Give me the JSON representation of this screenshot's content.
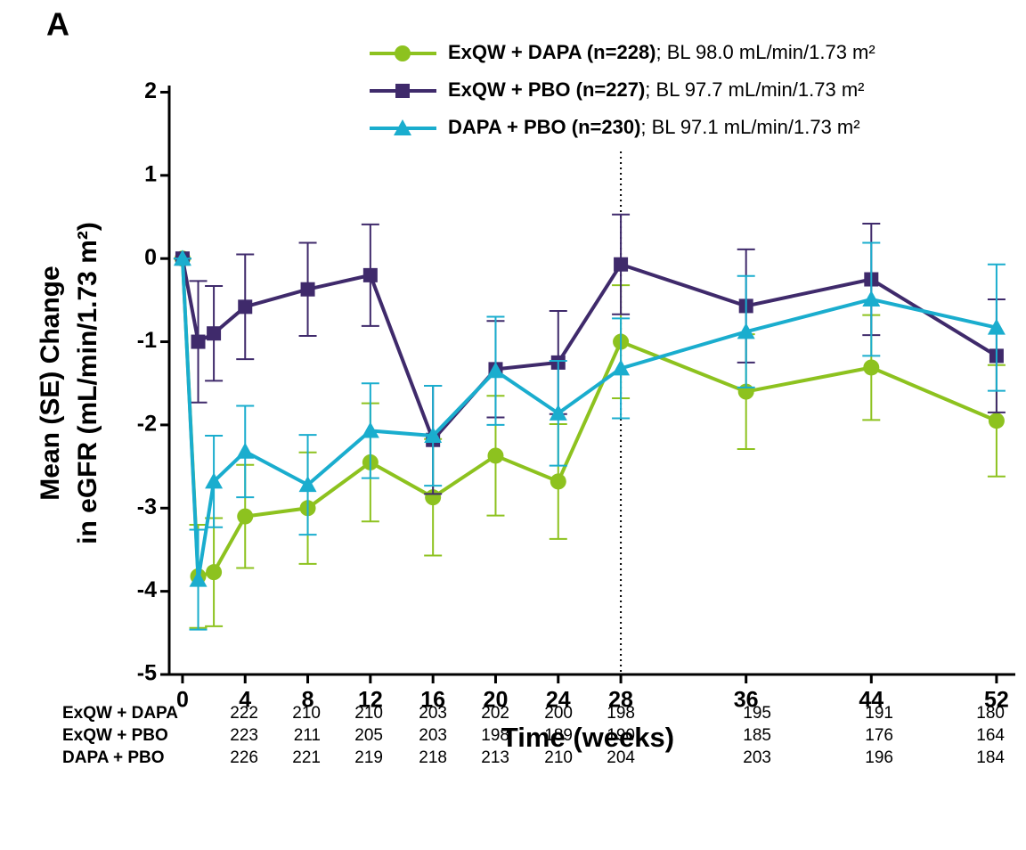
{
  "chart_data": {
    "type": "line",
    "panel_label": "A",
    "xlabel": "Time (weeks)",
    "ylabel": [
      "Mean (SE) Change",
      "in eGFR (mL/min/1.73 m²)"
    ],
    "x": [
      0,
      1,
      2,
      4,
      8,
      12,
      16,
      20,
      24,
      28,
      36,
      44,
      52
    ],
    "xlim": [
      -0.85,
      53.2
    ],
    "ylim": [
      -5,
      2.08
    ],
    "xticks": [
      0,
      4,
      8,
      12,
      16,
      20,
      24,
      28,
      36,
      44,
      52
    ],
    "yticks": [
      -5,
      -4,
      -3,
      -2,
      -1,
      0,
      1,
      2
    ],
    "reference_line_x": 28,
    "series": [
      {
        "name": "ExQW + DAPA (n=228)",
        "baseline": "; BL 98.0 mL/min/1.73 m²",
        "color": "#8dc21f",
        "marker": "circle",
        "values": [
          0,
          -3.82,
          -3.77,
          -3.1,
          -3.0,
          -2.45,
          -2.87,
          -2.37,
          -2.68,
          -1.0,
          -1.6,
          -1.31,
          -1.95
        ],
        "errors": [
          0,
          0.62,
          0.65,
          0.62,
          0.67,
          0.71,
          0.7,
          0.72,
          0.69,
          0.68,
          0.69,
          0.63,
          0.67
        ]
      },
      {
        "name": "ExQW + PBO (n=227)",
        "baseline": "; BL 97.7 mL/min/1.73 m²",
        "color": "#3f2a6b",
        "marker": "square",
        "values": [
          0,
          -1.0,
          -0.9,
          -0.58,
          -0.37,
          -0.2,
          -2.18,
          -1.33,
          -1.25,
          -0.07,
          -0.57,
          -0.25,
          -1.17
        ],
        "errors": [
          0,
          0.73,
          0.57,
          0.63,
          0.56,
          0.61,
          0.65,
          0.58,
          0.62,
          0.6,
          0.68,
          0.67,
          0.68
        ]
      },
      {
        "name": "DAPA + PBO (n=230)",
        "baseline": "; BL 97.1 mL/min/1.73 m²",
        "color": "#1aadce",
        "marker": "triangle",
        "values": [
          0,
          -3.86,
          -2.68,
          -2.32,
          -2.72,
          -2.07,
          -2.13,
          -1.35,
          -1.86,
          -1.32,
          -0.88,
          -0.49,
          -0.83
        ],
        "errors": [
          0,
          0.6,
          0.55,
          0.55,
          0.6,
          0.57,
          0.6,
          0.65,
          0.63,
          0.6,
          0.67,
          0.68,
          0.76
        ]
      }
    ],
    "at_risk": {
      "rows": [
        {
          "label": "ExQW + DAPA",
          "values": [
            222,
            210,
            210,
            203,
            202,
            200,
            198,
            195,
            191,
            180
          ]
        },
        {
          "label": "ExQW + PBO",
          "values": [
            223,
            211,
            205,
            203,
            198,
            189,
            190,
            185,
            176,
            164
          ]
        },
        {
          "label": "DAPA + PBO",
          "values": [
            226,
            221,
            219,
            218,
            213,
            210,
            204,
            203,
            196,
            184
          ]
        }
      ]
    }
  }
}
